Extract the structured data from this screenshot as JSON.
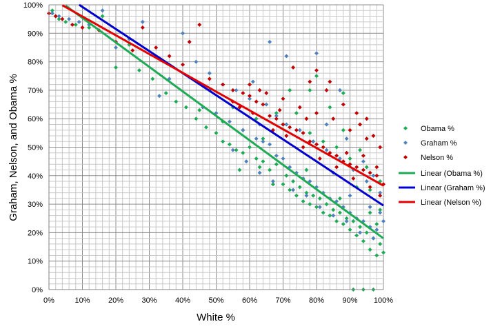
{
  "chart_data": {
    "type": "scatter",
    "title": "",
    "xlabel": "White %",
    "ylabel": "Graham, Nelson, and Obama %",
    "xlim": [
      0,
      100
    ],
    "ylim": [
      0,
      100
    ],
    "x_unit": "%",
    "y_unit": "%",
    "x_ticks": [
      "0%",
      "10%",
      "20%",
      "30%",
      "40%",
      "50%",
      "60%",
      "70%",
      "80%",
      "90%",
      "100%"
    ],
    "y_ticks": [
      "0%",
      "10%",
      "20%",
      "30%",
      "40%",
      "50%",
      "60%",
      "70%",
      "80%",
      "90%",
      "100%"
    ],
    "grid": true,
    "minor_grid_step": 2,
    "legend_position": "right",
    "series": [
      {
        "name": "Obama %",
        "marker": "diamond",
        "color": "#1faa55",
        "points": [
          [
            1,
            98
          ],
          [
            2,
            96
          ],
          [
            3,
            95
          ],
          [
            5,
            94
          ],
          [
            8,
            93
          ],
          [
            12,
            92
          ],
          [
            16,
            96
          ],
          [
            20,
            78
          ],
          [
            24,
            86
          ],
          [
            27,
            77
          ],
          [
            31,
            74
          ],
          [
            35,
            69
          ],
          [
            38,
            66
          ],
          [
            41,
            64
          ],
          [
            44,
            60
          ],
          [
            47,
            57
          ],
          [
            50,
            55
          ],
          [
            52,
            52
          ],
          [
            54,
            51
          ],
          [
            56,
            49
          ],
          [
            58,
            48
          ],
          [
            60,
            50
          ],
          [
            62,
            46
          ],
          [
            63,
            43
          ],
          [
            64,
            45
          ],
          [
            66,
            42
          ],
          [
            68,
            44
          ],
          [
            70,
            37
          ],
          [
            71,
            40
          ],
          [
            72,
            35
          ],
          [
            73,
            38
          ],
          [
            74,
            33
          ],
          [
            75,
            36
          ],
          [
            76,
            31
          ],
          [
            77,
            34
          ],
          [
            78,
            30
          ],
          [
            79,
            33
          ],
          [
            80,
            29
          ],
          [
            81,
            32
          ],
          [
            82,
            27
          ],
          [
            83,
            30
          ],
          [
            84,
            26
          ],
          [
            85,
            28
          ],
          [
            86,
            24
          ],
          [
            87,
            27
          ],
          [
            88,
            23
          ],
          [
            89,
            25
          ],
          [
            90,
            21
          ],
          [
            91,
            24
          ],
          [
            92,
            19
          ],
          [
            93,
            22
          ],
          [
            94,
            17
          ],
          [
            95,
            20
          ],
          [
            96,
            14
          ],
          [
            97,
            18
          ],
          [
            98,
            12
          ],
          [
            99,
            16
          ],
          [
            100,
            13
          ],
          [
            91,
            0
          ],
          [
            94,
            0
          ],
          [
            97,
            0
          ],
          [
            55,
            64
          ],
          [
            62,
            60
          ],
          [
            70,
            58
          ],
          [
            78,
            55
          ],
          [
            82,
            52
          ],
          [
            86,
            50
          ],
          [
            90,
            46
          ],
          [
            95,
            43
          ],
          [
            99,
            38
          ],
          [
            72,
            70
          ],
          [
            78,
            70
          ],
          [
            80,
            75
          ],
          [
            88,
            69
          ],
          [
            68,
            62
          ],
          [
            74,
            62
          ],
          [
            84,
            64
          ],
          [
            57,
            42
          ],
          [
            67,
            37
          ],
          [
            77,
            42
          ],
          [
            87,
            32
          ],
          [
            92,
            36
          ],
          [
            96,
            27
          ],
          [
            98,
            23
          ],
          [
            45,
            63
          ],
          [
            48,
            70
          ],
          [
            52,
            59
          ],
          [
            58,
            56
          ],
          [
            64,
            53
          ],
          [
            88,
            56
          ],
          [
            93,
            49
          ],
          [
            96,
            35
          ],
          [
            99,
            28
          ]
        ]
      },
      {
        "name": "Graham %",
        "marker": "diamond",
        "color": "#4f81bd",
        "points": [
          [
            1,
            97
          ],
          [
            3,
            96
          ],
          [
            6,
            95
          ],
          [
            9,
            94
          ],
          [
            12,
            93
          ],
          [
            16,
            98
          ],
          [
            20,
            85
          ],
          [
            24,
            88
          ],
          [
            28,
            94
          ],
          [
            33,
            68
          ],
          [
            36,
            74
          ],
          [
            40,
            90
          ],
          [
            42,
            87
          ],
          [
            46,
            64
          ],
          [
            50,
            62
          ],
          [
            54,
            59
          ],
          [
            58,
            56
          ],
          [
            62,
            53
          ],
          [
            64,
            52
          ],
          [
            66,
            51
          ],
          [
            68,
            47
          ],
          [
            70,
            46
          ],
          [
            72,
            43
          ],
          [
            74,
            41
          ],
          [
            76,
            39
          ],
          [
            78,
            38
          ],
          [
            80,
            36
          ],
          [
            82,
            34
          ],
          [
            84,
            32
          ],
          [
            86,
            31
          ],
          [
            88,
            29
          ],
          [
            90,
            27
          ],
          [
            92,
            25
          ],
          [
            94,
            24
          ],
          [
            96,
            22
          ],
          [
            98,
            21
          ],
          [
            100,
            24
          ],
          [
            44,
            80
          ],
          [
            48,
            76
          ],
          [
            52,
            72
          ],
          [
            56,
            70
          ],
          [
            60,
            67
          ],
          [
            65,
            65
          ],
          [
            68,
            61
          ],
          [
            71,
            58
          ],
          [
            75,
            56
          ],
          [
            79,
            52
          ],
          [
            83,
            49
          ],
          [
            87,
            46
          ],
          [
            91,
            42
          ],
          [
            95,
            38
          ],
          [
            99,
            34
          ],
          [
            80,
            83
          ],
          [
            66,
            87
          ],
          [
            71,
            82
          ],
          [
            87,
            70
          ],
          [
            55,
            49
          ],
          [
            59,
            45
          ],
          [
            63,
            41
          ],
          [
            67,
            38
          ],
          [
            73,
            35
          ],
          [
            77,
            33
          ],
          [
            81,
            29
          ],
          [
            85,
            26
          ],
          [
            89,
            24
          ],
          [
            93,
            20
          ],
          [
            97,
            18
          ],
          [
            83,
            58
          ],
          [
            89,
            53
          ],
          [
            94,
            45
          ],
          [
            97,
            40
          ],
          [
            61,
            73
          ],
          [
            57,
            64
          ],
          [
            63,
            58
          ],
          [
            85,
            41
          ],
          [
            90,
            33
          ],
          [
            96,
            29
          ],
          [
            99,
            27
          ]
        ]
      },
      {
        "name": "Nelson %",
        "marker": "diamond",
        "color": "#c00000",
        "points": [
          [
            0,
            97
          ],
          [
            2,
            96
          ],
          [
            4,
            95
          ],
          [
            7,
            93
          ],
          [
            10,
            92
          ],
          [
            15,
            91
          ],
          [
            20,
            87
          ],
          [
            25,
            84
          ],
          [
            28,
            92
          ],
          [
            32,
            85
          ],
          [
            36,
            82
          ],
          [
            40,
            79
          ],
          [
            42,
            87
          ],
          [
            45,
            93
          ],
          [
            48,
            74
          ],
          [
            52,
            72
          ],
          [
            55,
            70
          ],
          [
            58,
            69
          ],
          [
            60,
            68
          ],
          [
            62,
            66
          ],
          [
            64,
            65
          ],
          [
            66,
            61
          ],
          [
            68,
            60
          ],
          [
            70,
            58
          ],
          [
            72,
            57
          ],
          [
            74,
            56
          ],
          [
            76,
            55
          ],
          [
            78,
            52
          ],
          [
            80,
            51
          ],
          [
            82,
            50
          ],
          [
            84,
            48
          ],
          [
            86,
            47
          ],
          [
            88,
            45
          ],
          [
            90,
            44
          ],
          [
            92,
            43
          ],
          [
            94,
            42
          ],
          [
            96,
            41
          ],
          [
            98,
            40
          ],
          [
            100,
            37
          ],
          [
            60,
            72
          ],
          [
            65,
            69
          ],
          [
            70,
            67
          ],
          [
            75,
            64
          ],
          [
            80,
            62
          ],
          [
            85,
            60
          ],
          [
            90,
            56
          ],
          [
            95,
            53
          ],
          [
            99,
            50
          ],
          [
            73,
            78
          ],
          [
            78,
            73
          ],
          [
            83,
            70
          ],
          [
            88,
            65
          ],
          [
            93,
            58
          ],
          [
            97,
            54
          ],
          [
            57,
            64
          ],
          [
            61,
            62
          ],
          [
            67,
            56
          ],
          [
            71,
            54
          ],
          [
            76,
            50
          ],
          [
            81,
            46
          ],
          [
            86,
            43
          ],
          [
            91,
            39
          ],
          [
            96,
            36
          ],
          [
            99,
            33
          ],
          [
            80,
            77
          ],
          [
            84,
            73
          ],
          [
            92,
            62
          ],
          [
            95,
            60
          ],
          [
            55,
            66
          ],
          [
            63,
            70
          ],
          [
            69,
            63
          ],
          [
            77,
            60
          ],
          [
            89,
            48
          ],
          [
            94,
            47
          ],
          [
            98,
            43
          ]
        ]
      }
    ],
    "trendlines": [
      {
        "name": "Linear (Obama %)",
        "type": "linear",
        "color": "#1faa55",
        "slope": -0.86,
        "intercept": 104,
        "x_range": [
          5,
          100
        ]
      },
      {
        "name": "Linear (Graham %)",
        "type": "linear",
        "color": "#0000cc",
        "slope": -0.775,
        "intercept": 107,
        "x_range": [
          8,
          100
        ]
      },
      {
        "name": "Linear (Nelson %)",
        "type": "linear",
        "color": "#e00000",
        "slope": -0.66,
        "intercept": 102.5,
        "x_range": [
          4,
          100
        ]
      }
    ]
  }
}
